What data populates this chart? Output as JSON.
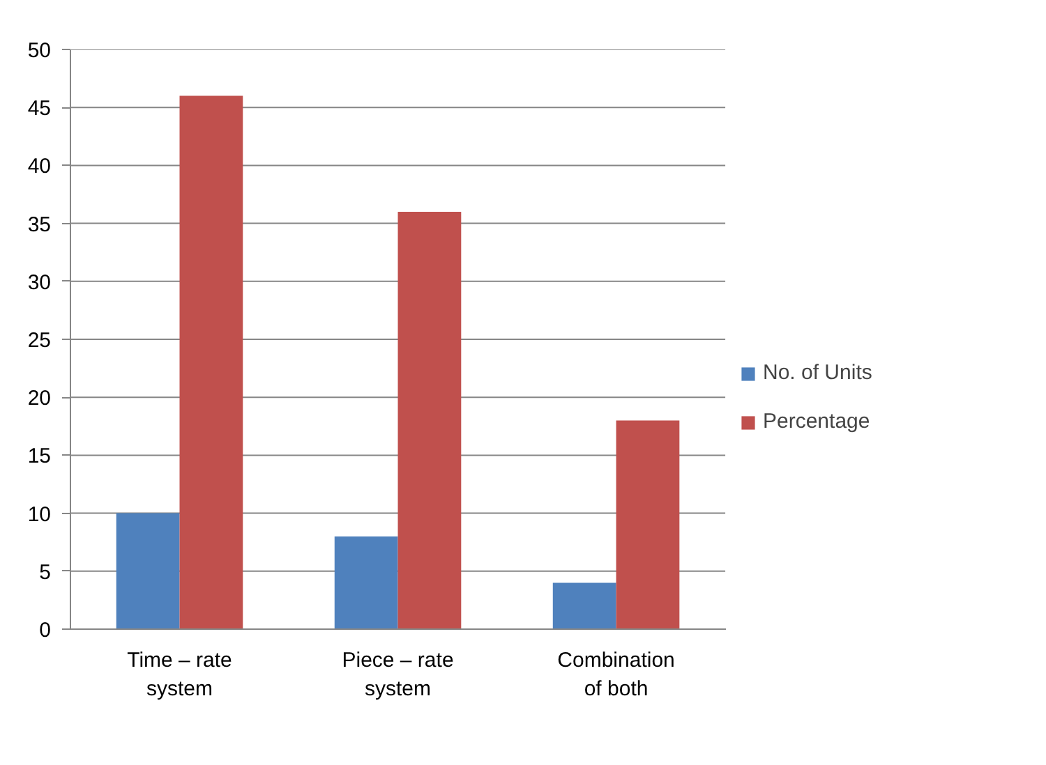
{
  "chart_data": {
    "type": "bar",
    "categories": [
      "Time – rate\nsystem",
      "Piece – rate\nsystem",
      "Combination\nof both"
    ],
    "series": [
      {
        "name": "No. of Units",
        "color": "#4f81bd",
        "values": [
          10,
          8,
          4
        ]
      },
      {
        "name": "Percentage",
        "color": "#c0504d",
        "values": [
          46,
          36,
          18
        ]
      }
    ],
    "ylim": [
      0,
      50
    ],
    "yticks": [
      0,
      5,
      10,
      15,
      20,
      25,
      30,
      35,
      40,
      45,
      50
    ],
    "grid": "y",
    "legend": "right"
  }
}
